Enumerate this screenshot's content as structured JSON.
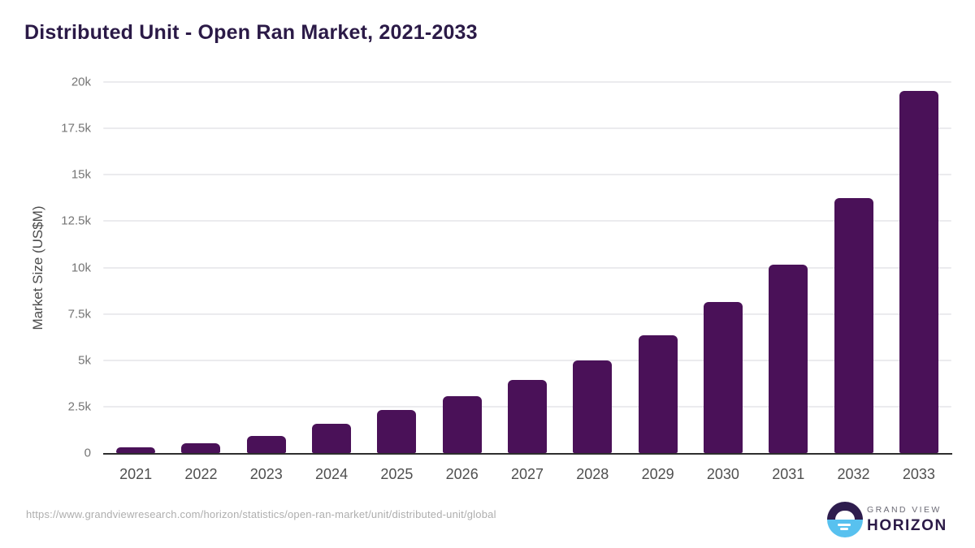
{
  "header": {
    "title": "Distributed Unit - Open Ran Market, 2021-2033"
  },
  "chart_data": {
    "type": "bar",
    "title": "Distributed Unit - Open Ran Market, 2021-2033",
    "categories": [
      "2021",
      "2022",
      "2023",
      "2024",
      "2025",
      "2026",
      "2027",
      "2028",
      "2029",
      "2030",
      "2031",
      "2032",
      "2033"
    ],
    "values": [
      300,
      520,
      910,
      1560,
      2300,
      3070,
      3950,
      5010,
      6360,
      8130,
      10150,
      13720,
      19520
    ],
    "xlabel": "",
    "ylabel": "Market Size (US$M)",
    "ylim": [
      0,
      20000
    ],
    "yticks": [
      {
        "label": "0",
        "value": 0
      },
      {
        "label": "2.5k",
        "value": 2500
      },
      {
        "label": "5k",
        "value": 5000
      },
      {
        "label": "7.5k",
        "value": 7500
      },
      {
        "label": "10k",
        "value": 10000
      },
      {
        "label": "12.5k",
        "value": 12500
      },
      {
        "label": "15k",
        "value": 15000
      },
      {
        "label": "17.5k",
        "value": 17500
      },
      {
        "label": "20k",
        "value": 20000
      }
    ],
    "grid": true,
    "legend": false,
    "bar_color": "#4a1158"
  },
  "footer": {
    "source_url": "https://www.grandviewresearch.com/horizon/statistics/open-ran-market/unit/distributed-unit/global",
    "logo": {
      "brand_top": "GRAND VIEW",
      "brand_bottom": "HORIZON"
    }
  },
  "colors": {
    "bar": "#4a1158",
    "title_text": "#2b1a47",
    "axis_line": "#2e2e2e",
    "gridline": "#ebebee",
    "tick_text": "#757575",
    "x_label_text": "#4f4f4f",
    "url_text": "#aeaeae",
    "logo_purple": "#2e1d4e",
    "logo_blue": "#58c1ef"
  }
}
